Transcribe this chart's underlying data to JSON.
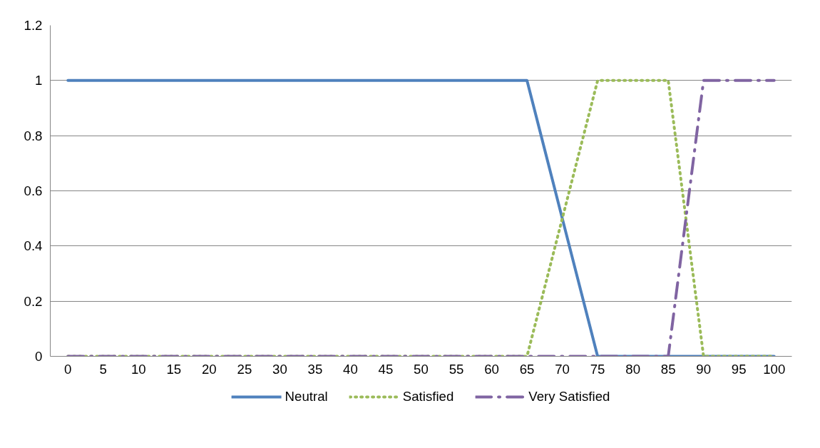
{
  "chart_data": {
    "type": "line",
    "categories": [
      "0",
      "5",
      "10",
      "15",
      "20",
      "25",
      "30",
      "35",
      "40",
      "45",
      "50",
      "55",
      "60",
      "65",
      "70",
      "75",
      "80",
      "85",
      "90",
      "95",
      "100"
    ],
    "series": [
      {
        "name": "Neutral",
        "color": "#4f81bd",
        "line_style": "solid",
        "values": [
          1,
          1,
          1,
          1,
          1,
          1,
          1,
          1,
          1,
          1,
          1,
          1,
          1,
          1,
          0.5,
          0,
          0,
          0,
          0,
          0,
          0
        ]
      },
      {
        "name": "Satisfied",
        "color": "#9bbb59",
        "line_style": "dotted",
        "values": [
          0,
          0,
          0,
          0,
          0,
          0,
          0,
          0,
          0,
          0,
          0,
          0,
          0,
          0,
          0.5,
          1,
          1,
          1,
          0,
          0,
          0
        ]
      },
      {
        "name": "Very Satisfied",
        "color": "#8064a2",
        "line_style": "dashed",
        "values": [
          0,
          0,
          0,
          0,
          0,
          0,
          0,
          0,
          0,
          0,
          0,
          0,
          0,
          0,
          0,
          0,
          0,
          0,
          1,
          1,
          1
        ]
      }
    ],
    "ylim": [
      0,
      1.2
    ],
    "yticks": [
      0,
      0.2,
      0.4,
      0.6,
      0.8,
      1,
      1.2
    ],
    "grid": "y",
    "legend": "bottom"
  }
}
